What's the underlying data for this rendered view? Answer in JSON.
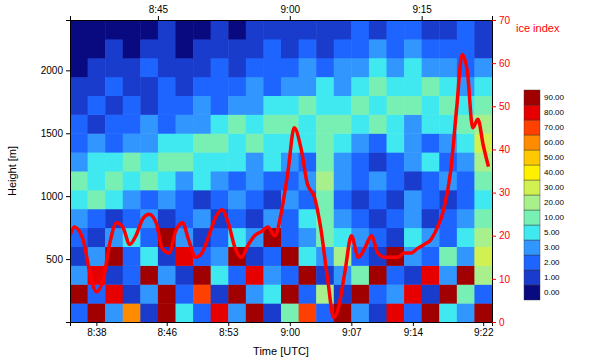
{
  "chart_data": {
    "type": "heatmap",
    "xlabel": "Time [UTC]",
    "ylabel": "Height [m]",
    "y2label": "ice index",
    "xlim": [
      515,
      563
    ],
    "xticks": [
      {
        "value": 518,
        "label": "8:38"
      },
      {
        "value": 526,
        "label": "8:46"
      },
      {
        "value": 533,
        "label": "8:53"
      },
      {
        "value": 540,
        "label": "9:00"
      },
      {
        "value": 547,
        "label": "9:07"
      },
      {
        "value": 554,
        "label": "9:14"
      },
      {
        "value": 562,
        "label": "9:22"
      }
    ],
    "x2ticks": [
      {
        "value": 525,
        "label": "8:45"
      },
      {
        "value": 540,
        "label": "9:00"
      },
      {
        "value": 555,
        "label": "9:15"
      }
    ],
    "ylim": [
      0,
      2400
    ],
    "yticks": [
      500,
      1000,
      1500,
      2000
    ],
    "y2lim": [
      0,
      70
    ],
    "y2ticks": [
      0,
      10,
      20,
      30,
      40,
      50,
      60,
      70
    ],
    "x": [
      516,
      518,
      520,
      522,
      524,
      526,
      528,
      530,
      532,
      534,
      536,
      538,
      540,
      542,
      544,
      546,
      548,
      550,
      552,
      554,
      556,
      558,
      560,
      562,
      564
    ],
    "y": [
      75,
      225,
      375,
      525,
      675,
      825,
      975,
      1125,
      1275,
      1425,
      1575,
      1725,
      1875,
      2025,
      2175,
      2325
    ],
    "cells": [
      [
        2,
        90,
        3,
        60,
        1,
        90,
        5,
        2,
        80,
        3,
        90,
        1,
        10,
        70,
        2,
        90,
        3,
        1,
        85,
        2,
        90,
        5,
        3,
        90,
        20
      ],
      [
        90,
        2,
        85,
        1,
        3,
        90,
        2,
        70,
        1,
        90,
        3,
        5,
        90,
        2,
        20,
        1,
        90,
        2,
        3,
        80,
        1,
        90,
        10,
        2,
        90
      ],
      [
        3,
        80,
        1,
        2,
        90,
        3,
        1,
        90,
        5,
        2,
        85,
        3,
        2,
        90,
        1,
        3,
        10,
        90,
        2,
        1,
        85,
        3,
        90,
        20,
        5
      ],
      [
        1,
        3,
        90,
        2,
        5,
        1,
        80,
        2,
        3,
        90,
        1,
        2,
        90,
        5,
        3,
        20,
        2,
        1,
        90,
        3,
        2,
        10,
        3,
        30,
        10
      ],
      [
        2,
        1,
        3,
        5,
        2,
        90,
        3,
        1,
        2,
        5,
        3,
        90,
        2,
        3,
        10,
        5,
        3,
        2,
        1,
        5,
        3,
        2,
        5,
        20,
        10
      ],
      [
        3,
        2,
        1,
        2,
        3,
        1,
        2,
        3,
        1,
        2,
        1,
        3,
        2,
        5,
        10,
        3,
        2,
        1,
        2,
        3,
        1,
        2,
        3,
        10,
        5
      ],
      [
        5,
        10,
        5,
        3,
        2,
        3,
        2,
        1,
        2,
        3,
        2,
        1,
        3,
        2,
        10,
        2,
        1,
        2,
        1,
        3,
        2,
        1,
        2,
        5,
        10
      ],
      [
        10,
        5,
        10,
        5,
        10,
        5,
        3,
        5,
        3,
        2,
        3,
        2,
        2,
        3,
        20,
        3,
        2,
        3,
        2,
        1,
        2,
        3,
        2,
        10,
        20
      ],
      [
        3,
        5,
        5,
        10,
        5,
        10,
        10,
        5,
        5,
        5,
        3,
        5,
        3,
        2,
        10,
        3,
        2,
        1,
        2,
        3,
        5,
        2,
        3,
        20,
        10
      ],
      [
        2,
        3,
        2,
        3,
        3,
        5,
        5,
        10,
        10,
        5,
        10,
        5,
        5,
        5,
        10,
        5,
        3,
        2,
        5,
        3,
        2,
        3,
        5,
        30,
        20
      ],
      [
        2,
        1,
        2,
        2,
        3,
        2,
        3,
        3,
        5,
        10,
        5,
        10,
        10,
        5,
        10,
        10,
        5,
        10,
        5,
        3,
        5,
        5,
        10,
        20,
        10
      ],
      [
        1,
        2,
        1,
        2,
        1,
        2,
        2,
        3,
        2,
        3,
        3,
        5,
        5,
        10,
        5,
        5,
        10,
        5,
        10,
        10,
        5,
        10,
        5,
        10,
        5
      ],
      [
        1,
        1,
        2,
        1,
        1,
        2,
        1,
        2,
        2,
        2,
        3,
        2,
        3,
        3,
        5,
        3,
        5,
        10,
        5,
        5,
        10,
        5,
        3,
        5,
        3
      ],
      [
        0,
        1,
        1,
        1,
        2,
        1,
        1,
        1,
        2,
        1,
        2,
        2,
        2,
        3,
        2,
        3,
        3,
        5,
        3,
        5,
        3,
        3,
        2,
        3,
        2
      ],
      [
        0,
        0,
        1,
        0,
        1,
        1,
        0,
        1,
        1,
        1,
        1,
        2,
        1,
        2,
        1,
        2,
        2,
        3,
        2,
        3,
        2,
        2,
        2,
        1,
        2
      ],
      [
        0,
        0,
        0,
        0,
        0,
        1,
        0,
        0,
        1,
        0,
        1,
        1,
        1,
        1,
        1,
        1,
        2,
        1,
        2,
        2,
        1,
        1,
        2,
        1,
        1
      ]
    ],
    "colorbar": {
      "ticks": [
        {
          "value": 0,
          "label": "0.00"
        },
        {
          "value": 1,
          "label": "1.00"
        },
        {
          "value": 2,
          "label": "2.00"
        },
        {
          "value": 3,
          "label": "3.00"
        },
        {
          "value": 5,
          "label": "5.00"
        },
        {
          "value": 10,
          "label": "10.00"
        },
        {
          "value": 20,
          "label": "20.00"
        },
        {
          "value": 30,
          "label": "30.00"
        },
        {
          "value": 40,
          "label": "40.00"
        },
        {
          "value": 50,
          "label": "50.00"
        },
        {
          "value": 60,
          "label": "60.00"
        },
        {
          "value": 70,
          "label": "70.00"
        },
        {
          "value": 80,
          "label": "80.00"
        },
        {
          "value": 90,
          "label": "90.00"
        }
      ],
      "colors": [
        "#0a0a80",
        "#1a3ccc",
        "#1e64ff",
        "#3296ff",
        "#40e8f0",
        "#78f0b4",
        "#a8f08c",
        "#d2f050",
        "#fff000",
        "#ffc800",
        "#ff8c00",
        "#ff4000",
        "#e60000",
        "#a00000"
      ]
    },
    "series": [
      {
        "type": "line",
        "axis": "y2",
        "color": "#ff0000",
        "x": [
          515.0,
          515.5,
          516.5,
          517.3,
          518.0,
          518.8,
          519.5,
          520.3,
          521.0,
          521.8,
          522.5,
          523.3,
          524.0,
          524.8,
          525.5,
          526.3,
          527.0,
          527.8,
          528.5,
          529.3,
          530.0,
          530.8,
          531.5,
          532.3,
          533.0,
          533.8,
          534.5,
          535.3,
          536.0,
          536.8,
          537.5,
          538.3,
          539.0,
          539.8,
          540.5,
          541.3,
          542.0,
          542.8,
          543.5,
          544.3,
          545.0,
          545.5,
          546.3,
          547.0,
          547.8,
          548.5,
          549.3,
          550.0,
          550.8,
          551.5,
          552.3,
          553.0,
          553.8,
          554.5,
          555.3,
          556.0,
          556.8,
          557.5,
          558.3,
          559.0,
          559.6,
          560.2,
          560.8,
          561.4,
          562.0,
          562.6
        ],
        "values": [
          20,
          22,
          19,
          11,
          7,
          10,
          18,
          23,
          22,
          18,
          20,
          24,
          25,
          23,
          17,
          16,
          21,
          23,
          19,
          15,
          16,
          20,
          24,
          26,
          23,
          17,
          15,
          18,
          20,
          21,
          22,
          20,
          25,
          35,
          45,
          40,
          32,
          29,
          22,
          10,
          1,
          3,
          12,
          20,
          15,
          17,
          20,
          16,
          15,
          15,
          15,
          16,
          16,
          17,
          18,
          19,
          22,
          26,
          35,
          50,
          62,
          58,
          45,
          47,
          41,
          36
        ]
      }
    ]
  }
}
